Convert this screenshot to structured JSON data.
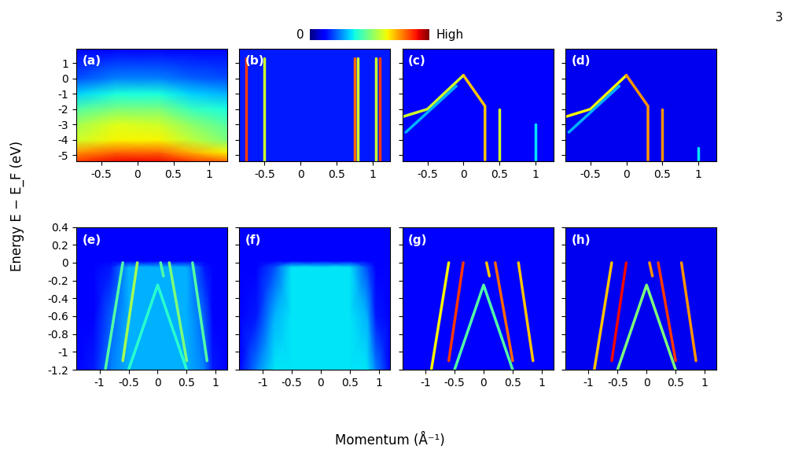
{
  "page_number": "3",
  "colorbar": {
    "range": [
      0,
      1
    ],
    "labels": [
      "0",
      "High"
    ]
  },
  "y_label": "Energy E − E_F (eV)",
  "x_label": "Momentum (Å⁻¹)",
  "chart_data": [
    {
      "type": "heatmap",
      "title": "(a)",
      "xlim": [
        -0.85,
        1.25
      ],
      "ylim": [
        -5.4,
        1.9
      ],
      "xticks": [
        -0.5,
        0,
        0.5,
        1
      ],
      "yticks": [
        -5,
        -4,
        -3,
        -2,
        -1,
        0,
        1
      ],
      "cells": {
        "x": [
          -0.85,
          -0.3,
          0.3,
          0.75,
          1.25
        ],
        "y": [
          -5.4,
          -4.8,
          -4,
          -3,
          -2,
          -1,
          0,
          1.9
        ],
        "values": [
          [
            0.85,
            0.9,
            0.9,
            0.85,
            0.8
          ],
          [
            0.75,
            0.8,
            0.8,
            0.72,
            0.65
          ],
          [
            0.6,
            0.65,
            0.65,
            0.58,
            0.5
          ],
          [
            0.55,
            0.62,
            0.6,
            0.52,
            0.45
          ],
          [
            0.45,
            0.5,
            0.5,
            0.42,
            0.38
          ],
          [
            0.33,
            0.38,
            0.38,
            0.33,
            0.3
          ],
          [
            0.2,
            0.25,
            0.25,
            0.22,
            0.2
          ],
          [
            0.12,
            0.12,
            0.12,
            0.12,
            0.12
          ]
        ]
      },
      "bands": []
    },
    {
      "type": "heatmap",
      "title": "(b)",
      "xlim": [
        -0.85,
        1.25
      ],
      "ylim": [
        -5.4,
        1.9
      ],
      "xticks": [
        -0.5,
        0,
        0.5,
        1
      ],
      "yticks": [
        -5,
        -4,
        -3,
        -2,
        -1,
        0,
        1
      ],
      "tick_labels": "x",
      "background": 0.15,
      "bands": [
        {
          "x": [
            -0.75,
            -0.75
          ],
          "y": [
            -5.4,
            1.3
          ],
          "intensity": 0.85
        },
        {
          "x": [
            -0.5,
            -0.5
          ],
          "y": [
            -5.4,
            1.3
          ],
          "intensity": 0.6
        },
        {
          "x": [
            0.75,
            0.75
          ],
          "y": [
            -5.4,
            1.3
          ],
          "intensity": 0.8
        },
        {
          "x": [
            0.8,
            0.8
          ],
          "y": [
            -5.4,
            1.3
          ],
          "intensity": 0.6
        },
        {
          "x": [
            1.05,
            1.05
          ],
          "y": [
            -5.4,
            1.3
          ],
          "intensity": 0.6
        },
        {
          "x": [
            1.1,
            1.1
          ],
          "y": [
            -5.4,
            1.3
          ],
          "intensity": 0.85
        }
      ]
    },
    {
      "type": "heatmap",
      "title": "(c)",
      "xlim": [
        -0.85,
        1.25
      ],
      "ylim": [
        -5.4,
        1.9
      ],
      "xticks": [
        -0.5,
        0,
        0.5,
        1
      ],
      "yticks": [
        -5,
        -4,
        -3,
        -2,
        -1,
        0,
        1
      ],
      "tick_labels": "x",
      "background": 0.12,
      "bands": [
        {
          "x": [
            -0.85,
            -0.5,
            0
          ],
          "y": [
            -2.5,
            -2.0,
            0.2
          ],
          "intensity": 0.6
        },
        {
          "x": [
            0,
            0.3,
            0.3
          ],
          "y": [
            0.2,
            -1.8,
            -5.3
          ],
          "intensity": 0.7
        },
        {
          "x": [
            -0.1,
            -0.8
          ],
          "y": [
            -0.5,
            -3.5
          ],
          "intensity": 0.3
        },
        {
          "x": [
            0.5,
            0.5
          ],
          "y": [
            -2.0,
            -5.3
          ],
          "intensity": 0.6
        },
        {
          "x": [
            1.0,
            1.0
          ],
          "y": [
            -3.0,
            -5.3
          ],
          "intensity": 0.35
        }
      ]
    },
    {
      "type": "heatmap",
      "title": "(d)",
      "xlim": [
        -0.85,
        1.25
      ],
      "ylim": [
        -5.4,
        1.9
      ],
      "xticks": [
        -0.5,
        0,
        0.5,
        1
      ],
      "yticks": [
        -5,
        -4,
        -3,
        -2,
        -1,
        0,
        1
      ],
      "tick_labels": "x",
      "background": 0.1,
      "bands": [
        {
          "x": [
            -0.85,
            -0.5,
            0
          ],
          "y": [
            -2.5,
            -2.0,
            0.2
          ],
          "intensity": 0.65
        },
        {
          "x": [
            0,
            0.3,
            0.3
          ],
          "y": [
            0.2,
            -1.8,
            -5.3
          ],
          "intensity": 0.75
        },
        {
          "x": [
            -0.1,
            -0.8
          ],
          "y": [
            -0.5,
            -3.5
          ],
          "intensity": 0.3
        },
        {
          "x": [
            0.5,
            0.5
          ],
          "y": [
            -2.0,
            -5.3
          ],
          "intensity": 0.75
        },
        {
          "x": [
            1.0,
            1.0
          ],
          "y": [
            -4.5,
            -5.3
          ],
          "intensity": 0.35
        }
      ]
    },
    {
      "type": "heatmap",
      "title": "(e)",
      "xlim": [
        -1.4,
        1.2
      ],
      "ylim": [
        -1.2,
        0.4
      ],
      "xticks": [
        -1,
        -0.5,
        0,
        0.5,
        1
      ],
      "yticks": [
        -1.2,
        -1,
        -0.8,
        -0.6,
        -0.4,
        -0.2,
        0,
        0.2,
        0.4
      ],
      "cells": {
        "x": [
          -1.4,
          -1.1,
          -0.8,
          -0.5,
          0,
          0.5,
          0.8,
          0.95,
          1.2
        ],
        "y": [
          -1.2,
          -0.6,
          -0.05,
          0.02,
          0.4
        ],
        "values": [
          [
            0.12,
            0.15,
            0.25,
            0.3,
            0.3,
            0.3,
            0.25,
            0.15,
            0.12
          ],
          [
            0.12,
            0.12,
            0.22,
            0.3,
            0.3,
            0.3,
            0.22,
            0.12,
            0.12
          ],
          [
            0.12,
            0.12,
            0.15,
            0.3,
            0.3,
            0.3,
            0.15,
            0.12,
            0.12
          ],
          [
            0.12,
            0.12,
            0.12,
            0.12,
            0.12,
            0.12,
            0.12,
            0.12,
            0.12
          ],
          [
            0.12,
            0.12,
            0.12,
            0.12,
            0.12,
            0.12,
            0.12,
            0.12,
            0.12
          ]
        ]
      },
      "bands": [
        {
          "x": [
            -0.6,
            -0.9
          ],
          "y": [
            0,
            -1.2
          ],
          "intensity": 0.45
        },
        {
          "x": [
            -0.35,
            -0.6
          ],
          "y": [
            0,
            -1.1
          ],
          "intensity": 0.55
        },
        {
          "x": [
            -0.5,
            0,
            0.5
          ],
          "y": [
            -1.2,
            -0.25,
            -1.2
          ],
          "intensity": 0.4
        },
        {
          "x": [
            0.05,
            0.1
          ],
          "y": [
            0,
            -0.15
          ],
          "intensity": 0.45
        },
        {
          "x": [
            0.2,
            0.5
          ],
          "y": [
            0,
            -1.1
          ],
          "intensity": 0.5
        },
        {
          "x": [
            0.6,
            0.85
          ],
          "y": [
            0,
            -1.1
          ],
          "intensity": 0.45
        }
      ]
    },
    {
      "type": "heatmap",
      "title": "(f)",
      "xlim": [
        -1.4,
        1.2
      ],
      "ylim": [
        -1.2,
        0.4
      ],
      "xticks": [
        -1,
        -0.5,
        0,
        0.5,
        1
      ],
      "yticks": [
        -1.2,
        -1,
        -0.8,
        -0.6,
        -0.4,
        -0.2,
        0,
        0.2,
        0.4
      ],
      "tick_labels": "x",
      "cells": {
        "x": [
          -1.4,
          -1.1,
          -0.8,
          -0.5,
          0,
          0.5,
          0.8,
          0.95,
          1.2
        ],
        "y": [
          -1.2,
          -0.6,
          -0.05,
          0.02,
          0.4
        ],
        "values": [
          [
            0.12,
            0.25,
            0.35,
            0.35,
            0.35,
            0.35,
            0.35,
            0.25,
            0.12
          ],
          [
            0.12,
            0.15,
            0.3,
            0.35,
            0.35,
            0.35,
            0.3,
            0.15,
            0.12
          ],
          [
            0.12,
            0.12,
            0.2,
            0.35,
            0.35,
            0.35,
            0.2,
            0.12,
            0.12
          ],
          [
            0.12,
            0.12,
            0.12,
            0.12,
            0.12,
            0.12,
            0.12,
            0.12,
            0.12
          ],
          [
            0.12,
            0.12,
            0.12,
            0.12,
            0.12,
            0.12,
            0.12,
            0.12,
            0.12
          ]
        ]
      },
      "bands": []
    },
    {
      "type": "heatmap",
      "title": "(g)",
      "xlim": [
        -1.4,
        1.2
      ],
      "ylim": [
        -1.2,
        0.4
      ],
      "xticks": [
        -1,
        -0.5,
        0,
        0.5,
        1
      ],
      "yticks": [
        -1.2,
        -1,
        -0.8,
        -0.6,
        -0.4,
        -0.2,
        0,
        0.2,
        0.4
      ],
      "tick_labels": "x",
      "background": 0.12,
      "bands": [
        {
          "x": [
            -0.6,
            -0.9
          ],
          "y": [
            0,
            -1.2
          ],
          "intensity": 0.65
        },
        {
          "x": [
            -0.35,
            -0.6
          ],
          "y": [
            0,
            -1.1
          ],
          "intensity": 0.85
        },
        {
          "x": [
            -0.5,
            0,
            0.5
          ],
          "y": [
            -1.2,
            -0.25,
            -1.2
          ],
          "intensity": 0.45
        },
        {
          "x": [
            0.05,
            0.1
          ],
          "y": [
            0,
            -0.15
          ],
          "intensity": 0.7
        },
        {
          "x": [
            0.2,
            0.5
          ],
          "y": [
            0,
            -1.1
          ],
          "intensity": 0.8
        },
        {
          "x": [
            0.6,
            0.85
          ],
          "y": [
            0,
            -1.1
          ],
          "intensity": 0.7
        }
      ]
    },
    {
      "type": "heatmap",
      "title": "(h)",
      "xlim": [
        -1.4,
        1.2
      ],
      "ylim": [
        -1.2,
        0.4
      ],
      "xticks": [
        -1,
        -0.5,
        0,
        0.5,
        1
      ],
      "yticks": [
        -1.2,
        -1,
        -0.8,
        -0.6,
        -0.4,
        -0.2,
        0,
        0.2,
        0.4
      ],
      "tick_labels": "x",
      "background": 0.1,
      "bands": [
        {
          "x": [
            -0.6,
            -0.9
          ],
          "y": [
            0,
            -1.2
          ],
          "intensity": 0.7
        },
        {
          "x": [
            -0.35,
            -0.6
          ],
          "y": [
            0,
            -1.1
          ],
          "intensity": 0.9
        },
        {
          "x": [
            -0.5,
            0,
            0.5
          ],
          "y": [
            -1.2,
            -0.25,
            -1.2
          ],
          "intensity": 0.5
        },
        {
          "x": [
            0.05,
            0.1
          ],
          "y": [
            0,
            -0.15
          ],
          "intensity": 0.75
        },
        {
          "x": [
            0.2,
            0.5
          ],
          "y": [
            0,
            -1.1
          ],
          "intensity": 0.85
        },
        {
          "x": [
            0.6,
            0.85
          ],
          "y": [
            0,
            -1.1
          ],
          "intensity": 0.75
        }
      ]
    }
  ]
}
